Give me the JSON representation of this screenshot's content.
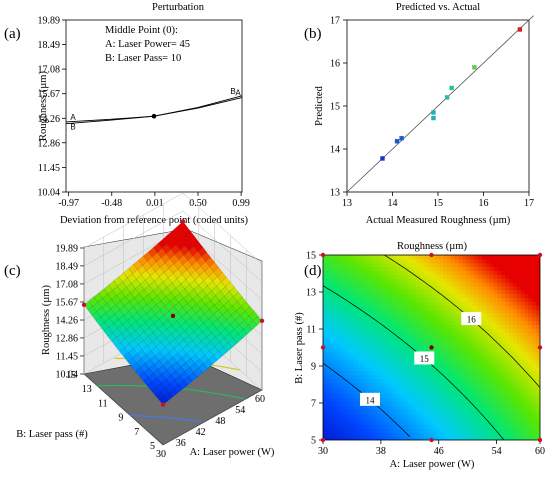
{
  "colors": {
    "axis": "#000000",
    "perturbation_line": "#000000",
    "fit_line": "#555555",
    "points_low": "#1f3fbf",
    "points_mid": "#20b0a0",
    "points_high": "#d81c1c",
    "design_point": "#c8102e",
    "center_point": "#800000"
  },
  "panels": {
    "a": {
      "label": "(a)"
    },
    "b": {
      "label": "(b)"
    },
    "c": {
      "label": "(c)"
    },
    "d": {
      "label": "(d)"
    }
  },
  "chart_data": [
    {
      "id": "perturbation",
      "type": "line",
      "title": "Perturbation",
      "xlabel": "Deviation from reference point (coded units)",
      "ylabel": "Roughness (µm)",
      "xlim": [
        -1.0,
        1.0
      ],
      "ylim": [
        10.04,
        19.89
      ],
      "xticks": [
        "-0.97",
        "-0.48",
        "0.01",
        "0.50",
        "0.99"
      ],
      "yticks": [
        "10.04",
        "11.45",
        "12.86",
        "14.26",
        "15.67",
        "17.08",
        "18.49",
        "19.89"
      ],
      "annotation": {
        "title": "Middle Point (0):",
        "line1": "A: Laser Power= 45",
        "line2": "B: Laser Pass= 10"
      },
      "series": [
        {
          "name": "A",
          "x": [
            -1.0,
            -0.5,
            0.0,
            0.5,
            1.0
          ],
          "y": [
            14.05,
            14.2,
            14.38,
            14.85,
            15.45
          ]
        },
        {
          "name": "B",
          "x": [
            -1.0,
            -0.5,
            0.0,
            0.5,
            1.0
          ],
          "y": [
            13.95,
            14.15,
            14.38,
            14.88,
            15.55
          ]
        }
      ],
      "reference_point": {
        "x": 0.0,
        "y": 14.38
      }
    },
    {
      "id": "predicted-vs-actual",
      "type": "scatter",
      "title": "Predicted vs. Actual",
      "xlabel": "Actual Measured Roughness (µm)",
      "ylabel": "Predicted",
      "xlim": [
        13,
        17
      ],
      "ylim": [
        13,
        17
      ],
      "xticks": [
        "13",
        "14",
        "15",
        "16",
        "17"
      ],
      "yticks": [
        "13",
        "14",
        "15",
        "16",
        "17"
      ],
      "points": [
        {
          "x": 13.78,
          "y": 13.78
        },
        {
          "x": 14.1,
          "y": 14.18
        },
        {
          "x": 14.2,
          "y": 14.25
        },
        {
          "x": 14.9,
          "y": 14.72
        },
        {
          "x": 14.9,
          "y": 14.85
        },
        {
          "x": 15.2,
          "y": 15.2
        },
        {
          "x": 15.3,
          "y": 15.42
        },
        {
          "x": 15.8,
          "y": 15.9
        },
        {
          "x": 16.8,
          "y": 16.78
        }
      ]
    },
    {
      "id": "surface-3d",
      "type": "heatmap",
      "xlabel": "A: Laser power (W)",
      "ylabel": "B: Laser pass (#)",
      "zlabel": "Roughness (µm)",
      "xticks": [
        "30",
        "36",
        "42",
        "48",
        "54",
        "60"
      ],
      "yticks": [
        "5",
        "7",
        "9",
        "11",
        "13",
        "15"
      ],
      "zticks": [
        "10.04",
        "11.45",
        "12.86",
        "14.26",
        "15.67",
        "17.08",
        "18.49",
        "19.89"
      ],
      "zlim": [
        10.04,
        19.89
      ],
      "corners": {
        "x30y5": 13.2,
        "x60y5": 14.9,
        "x30y15": 14.9,
        "x60y15": 16.9
      },
      "center": 14.38
    },
    {
      "id": "contour",
      "type": "heatmap",
      "title": "Roughness (µm)",
      "xlabel": "A: Laser power (W)",
      "ylabel": "B: Laser pass (#)",
      "xlim": [
        30,
        60
      ],
      "ylim": [
        5,
        15
      ],
      "xticks": [
        "30",
        "38",
        "46",
        "54",
        "60"
      ],
      "yticks": [
        "5",
        "7",
        "9",
        "11",
        "13",
        "15"
      ],
      "contours": [
        {
          "level": 14,
          "label": "14"
        },
        {
          "level": 15,
          "label": "15"
        },
        {
          "level": 16,
          "label": "16"
        }
      ],
      "design_points": [
        {
          "x": 30,
          "y": 5
        },
        {
          "x": 45,
          "y": 5
        },
        {
          "x": 60,
          "y": 5
        },
        {
          "x": 30,
          "y": 10
        },
        {
          "x": 45,
          "y": 10
        },
        {
          "x": 60,
          "y": 10
        },
        {
          "x": 30,
          "y": 15
        },
        {
          "x": 45,
          "y": 15
        },
        {
          "x": 60,
          "y": 15
        }
      ]
    }
  ]
}
